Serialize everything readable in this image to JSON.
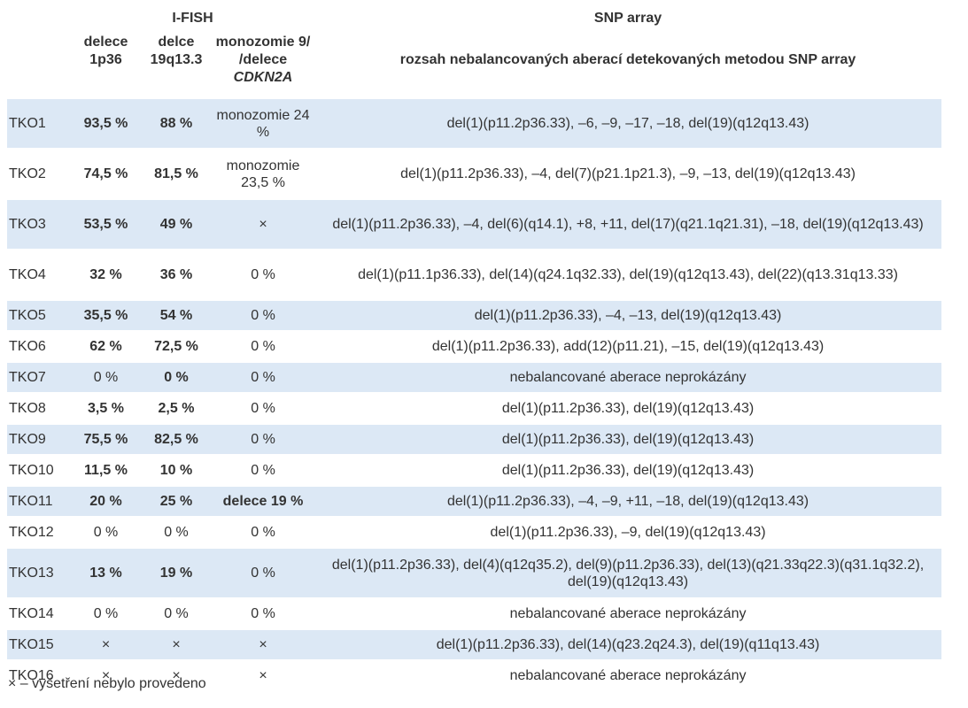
{
  "header": {
    "ifish": "I-FISH",
    "snp": "SNP array",
    "col1": "delece 1p36",
    "col2": "delce 19q13.3",
    "col3_line1": "monozomie 9/",
    "col3_prefix": "/delece ",
    "col3_gene": "CDKN2A",
    "col4": "rozsah nebalancovaných aberací detekovaných metodou SNP array"
  },
  "rows": [
    {
      "id": "TKO1",
      "del1p36": "93,5 %",
      "del19q": "88 %",
      "mono": "monozomie 24 %",
      "snp": "del(1)(p11.2p36.33), –6, –9, –17, –18, del(19)(q12q13.43)"
    },
    {
      "id": "TKO2",
      "del1p36": "74,5 %",
      "del19q": "81,5 %",
      "mono": "monozomie 23,5 %",
      "snp": "del(1)(p11.2p36.33), –4, del(7)(p21.1p21.3), –9, –13, del(19)(q12q13.43)"
    },
    {
      "id": "TKO3",
      "del1p36": "53,5 %",
      "del19q": "49 %",
      "mono": "×",
      "snp": "del(1)(p11.2p36.33), –4, del(6)(q14.1), +8, +11, del(17)(q21.1q21.31), –18, del(19)(q12q13.43)"
    },
    {
      "id": "TKO4",
      "del1p36": "32 %",
      "del19q": "36 %",
      "mono": "0 %",
      "snp": "del(1)(p11.1p36.33), del(14)(q24.1q32.33), del(19)(q12q13.43), del(22)(q13.31q13.33)"
    },
    {
      "id": "TKO5",
      "del1p36": "35,5 %",
      "del19q": "54 %",
      "mono": "0 %",
      "snp": "del(1)(p11.2p36.33), –4, –13, del(19)(q12q13.43)"
    },
    {
      "id": "TKO6",
      "del1p36": "62 %",
      "del19q": "72,5 %",
      "mono": "0 %",
      "snp": "del(1)(p11.2p36.33), add(12)(p11.21), –15, del(19)(q12q13.43)"
    },
    {
      "id": "TKO7",
      "del1p36": "0 %",
      "del19q": "0 %",
      "mono": "0 %",
      "snp": "nebalancované aberace neprokázány"
    },
    {
      "id": "TKO8",
      "del1p36": "3,5 %",
      "del19q": "2,5 %",
      "mono": "0 %",
      "snp": "del(1)(p11.2p36.33), del(19)(q12q13.43)"
    },
    {
      "id": "TKO9",
      "del1p36": "75,5 %",
      "del19q": "82,5 %",
      "mono": "0 %",
      "snp": "del(1)(p11.2p36.33), del(19)(q12q13.43)"
    },
    {
      "id": "TKO10",
      "del1p36": "11,5 %",
      "del19q": "10 %",
      "mono": "0 %",
      "snp": "del(1)(p11.2p36.33), del(19)(q12q13.43)"
    },
    {
      "id": "TKO11",
      "del1p36": "20 %",
      "del19q": "25 %",
      "mono": "delece 19  %",
      "snp": "del(1)(p11.2p36.33), –4, –9, +11, –18, del(19)(q12q13.43)"
    },
    {
      "id": "TKO12",
      "del1p36": "0 %",
      "del19q": "0 %",
      "mono": "0 %",
      "snp": "del(1)(p11.2p36.33), –9, del(19)(q12q13.43)"
    },
    {
      "id": "TKO13",
      "del1p36": "13 %",
      "del19q": "19 %",
      "mono": "0 %",
      "snp": "del(1)(p11.2p36.33), del(4)(q12q35.2), del(9)(p11.2p36.33), del(13)(q21.33q22.3)(q31.1q32.2), del(19)(q12q13.43)"
    },
    {
      "id": "TKO14",
      "del1p36": "0 %",
      "del19q": "0 %",
      "mono": "0 %",
      "snp": "nebalancované aberace neprokázány"
    },
    {
      "id": "TKO15",
      "del1p36": "×",
      "del19q": "×",
      "mono": "×",
      "snp": "del(1)(p11.2p36.33), del(14)(q23.2q24.3), del(19)(q11q13.43)"
    },
    {
      "id": "TKO16",
      "del1p36": "×",
      "del19q": "×",
      "mono": "×",
      "snp": "nebalancované aberace neprokázány"
    }
  ],
  "footnote": "× – vyšetření nebylo provedeno",
  "colors": {
    "row_shade": "#dce8f5",
    "text": "#333333"
  }
}
